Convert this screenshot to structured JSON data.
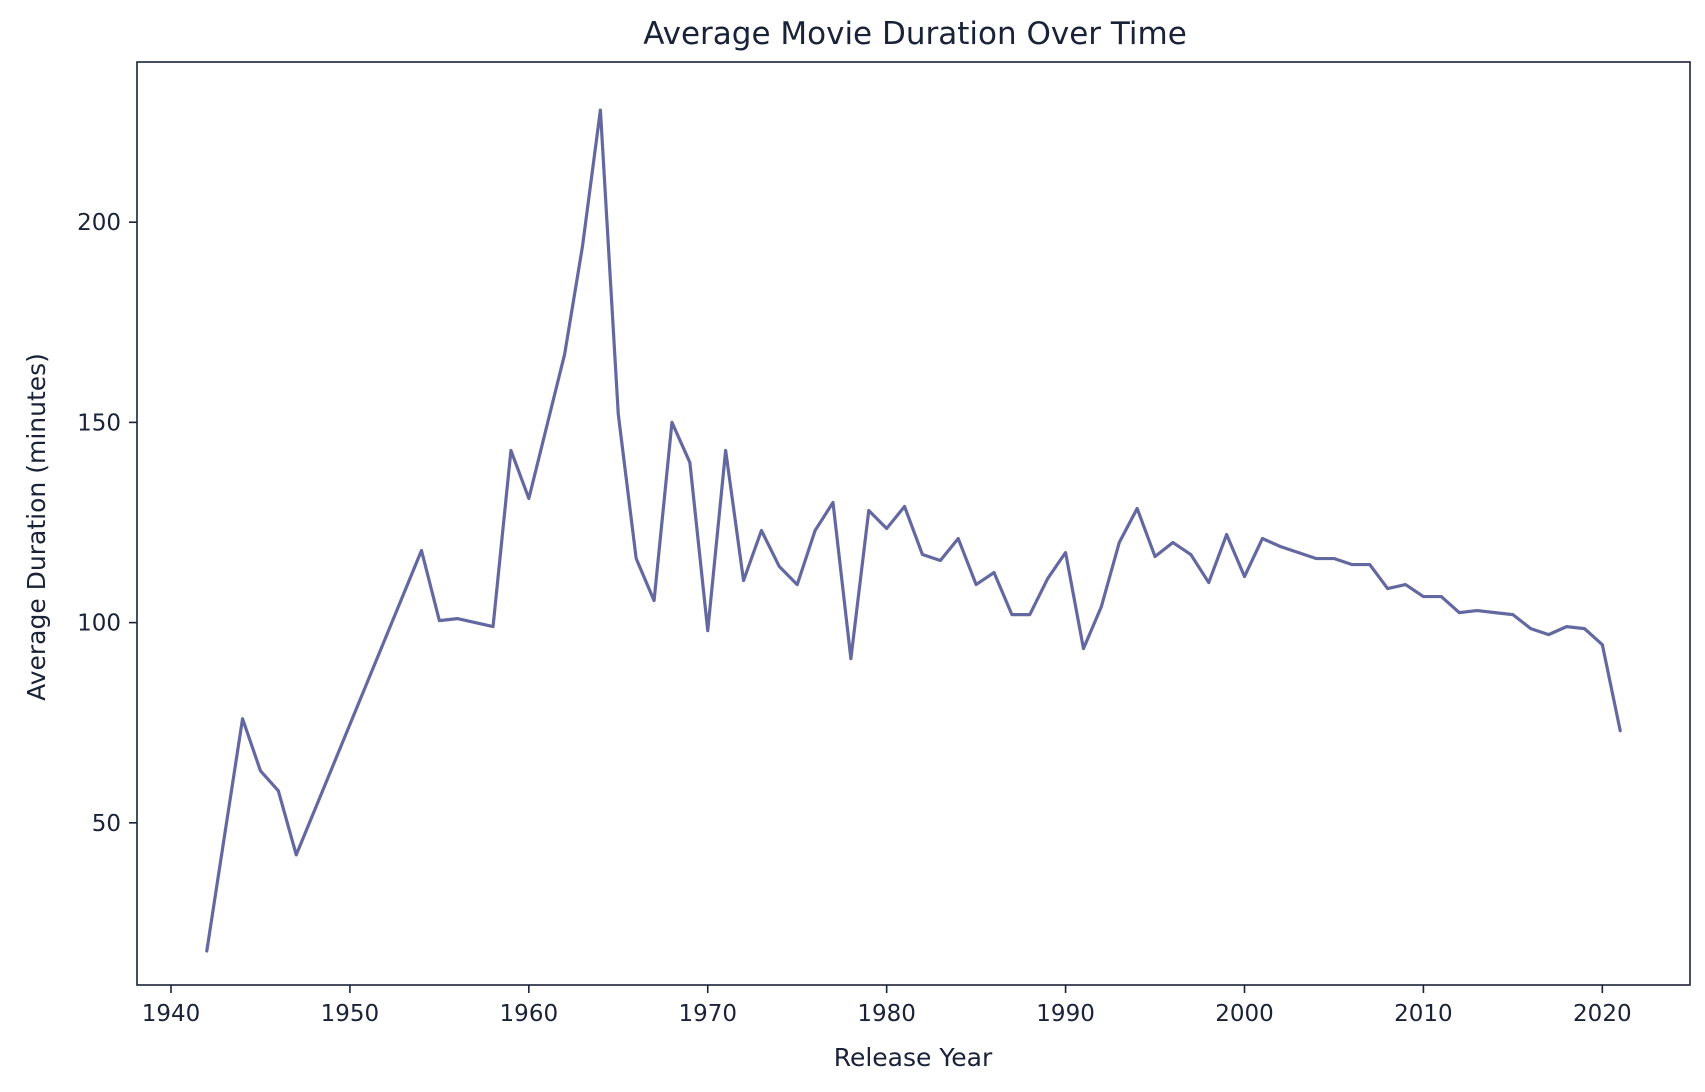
{
  "chart_data": {
    "type": "line",
    "title": "Average Movie Duration Over Time",
    "xlabel": "Release Year",
    "ylabel": "Average Duration (minutes)",
    "xlim": [
      1938.1,
      2024.9
    ],
    "ylim": [
      9.5,
      240
    ],
    "xticks": [
      1940,
      1950,
      1960,
      1970,
      1980,
      1990,
      2000,
      2010,
      2020
    ],
    "yticks": [
      50,
      100,
      150,
      200
    ],
    "grid": false,
    "line_color": "#6468a0",
    "series": [
      {
        "x": [
          1942,
          1944,
          1945,
          1946,
          1947,
          1954,
          1955,
          1956,
          1958,
          1959,
          1960,
          1962,
          1963,
          1964,
          1965,
          1966,
          1967,
          1968,
          1969,
          1970,
          1971,
          1972,
          1973,
          1974,
          1975,
          1976,
          1977,
          1978,
          1979,
          1980,
          1981,
          1982,
          1983,
          1984,
          1985,
          1986,
          1987,
          1988,
          1989,
          1990,
          1991,
          1992,
          1993,
          1994,
          1995,
          1996,
          1997,
          1998,
          1999,
          2000,
          2001,
          2002,
          2003,
          2004,
          2005,
          2006,
          2007,
          2008,
          2009,
          2010,
          2011,
          2012,
          2013,
          2014,
          2015,
          2016,
          2017,
          2018,
          2019,
          2020,
          2021
        ],
        "y": [
          18,
          76,
          63,
          58,
          42,
          118,
          100.5,
          101,
          99,
          143,
          131,
          167,
          194,
          228,
          152,
          116,
          105.5,
          150,
          140,
          98,
          143,
          110.5,
          123,
          114,
          109.5,
          123,
          130,
          91,
          128,
          123.5,
          129,
          117,
          115.5,
          121,
          109.5,
          112.5,
          102,
          102,
          111,
          117.5,
          93.5,
          104,
          120,
          128.5,
          116.5,
          120,
          117,
          110,
          122,
          111.5,
          121,
          119,
          117.5,
          116,
          116,
          114.5,
          114.5,
          108.5,
          109.5,
          106.5,
          106.5,
          102.5,
          103,
          102.5,
          102,
          98.5,
          97,
          99,
          98.5,
          94.5,
          73
        ]
      }
    ]
  }
}
